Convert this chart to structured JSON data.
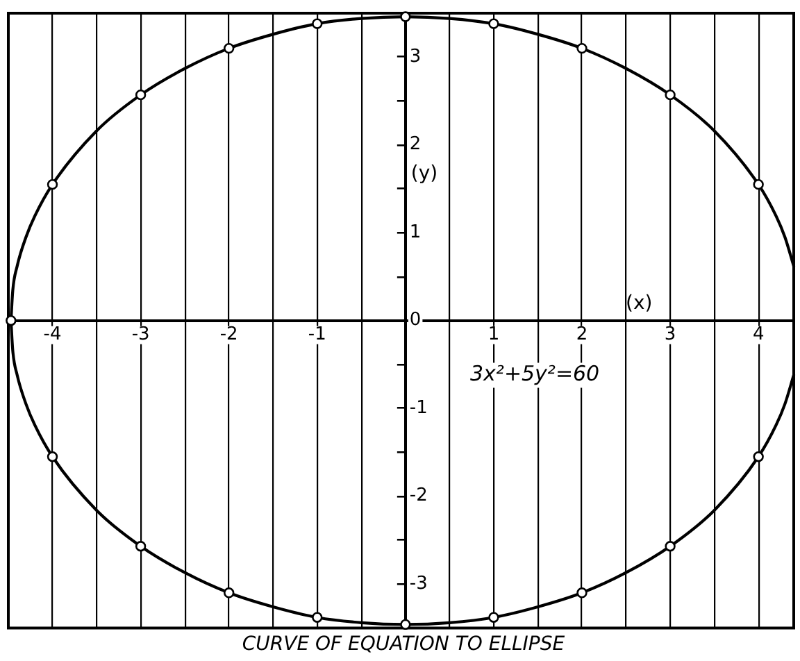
{
  "chart_data": {
    "type": "line",
    "title": "CURVE OF EQUATION TO ELLIPSE",
    "xlabel": "(x)",
    "ylabel": "(y)",
    "annotations": [
      "3x²+5y²=60"
    ],
    "series": [
      {
        "type": "line",
        "marker": "none",
        "color": "#000000",
        "x": [
          -4.47,
          -4.45,
          -4.4,
          -4.3,
          -4.2,
          -4,
          -3.5,
          -3,
          -2.5,
          -2,
          -1.5,
          -1,
          -0.5,
          0,
          0.5,
          1,
          1.5,
          2,
          2.5,
          3,
          3.5,
          4,
          4.2,
          4.3,
          4.4
        ],
        "values": [
          0,
          0.34,
          0.62,
          0.95,
          1.19,
          1.55,
          2.16,
          2.57,
          2.87,
          3.1,
          3.26,
          3.38,
          3.44,
          3.46,
          3.44,
          3.38,
          3.26,
          3.1,
          2.87,
          2.57,
          2.16,
          1.55,
          1.19,
          0.95,
          0.62
        ]
      },
      {
        "type": "line",
        "marker": "none",
        "color": "#000000",
        "x": [
          -4.47,
          -4.45,
          -4.4,
          -4.3,
          -4.2,
          -4,
          -3.5,
          -3,
          -2.5,
          -2,
          -1.5,
          -1,
          -0.5,
          0,
          0.5,
          1,
          1.5,
          2,
          2.5,
          3,
          3.5,
          4,
          4.2,
          4.3,
          4.4
        ],
        "values": [
          0,
          -0.34,
          -0.62,
          -0.95,
          -1.19,
          -1.55,
          -2.16,
          -2.57,
          -2.87,
          -3.1,
          -3.26,
          -3.38,
          -3.44,
          -3.46,
          -3.44,
          -3.38,
          -3.26,
          -3.1,
          -2.87,
          -2.57,
          -2.16,
          -1.55,
          -1.19,
          -0.95,
          -0.62
        ]
      },
      {
        "type": "scatter",
        "marker": "circle",
        "color": "#000000",
        "x": [
          -4.47,
          -4,
          -3,
          -2,
          -1,
          0,
          1,
          2,
          3,
          4,
          -4,
          -3,
          -2,
          -1,
          0,
          1,
          2,
          3,
          4
        ],
        "values": [
          0,
          1.55,
          2.57,
          3.1,
          3.38,
          3.46,
          3.38,
          3.1,
          2.57,
          1.55,
          -1.55,
          -2.57,
          -3.1,
          -3.38,
          -3.46,
          -3.38,
          -3.1,
          -2.57,
          -1.55
        ]
      }
    ],
    "xlim": [
      -4.5,
      4.4
    ],
    "ylim": [
      -3.5,
      3.5
    ],
    "xticks": [
      -4,
      {
        "value": -3.5,
        "label": null
      },
      -3,
      {
        "value": -2.5,
        "label": null
      },
      -2,
      {
        "value": -1.5,
        "label": null
      },
      -1,
      {
        "value": -0.5,
        "label": null
      },
      {
        "value": 0,
        "label": null
      },
      {
        "value": 0.5,
        "label": null
      },
      1,
      {
        "value": 1.5,
        "label": null
      },
      2,
      {
        "value": 2.5,
        "label": null
      },
      3,
      {
        "value": 3.5,
        "label": null
      },
      4
    ],
    "yticks": [
      -3,
      {
        "value": -2.5,
        "label": null
      },
      -2,
      {
        "value": -1.5,
        "label": null
      },
      -1,
      {
        "value": -0.5,
        "label": null
      },
      0,
      {
        "value": 0.5,
        "label": null
      },
      1,
      {
        "value": 1.5,
        "label": null
      },
      2,
      {
        "value": 2.5,
        "label": null
      },
      3
    ],
    "grid": "x",
    "legend": false,
    "line_style": "solid"
  }
}
